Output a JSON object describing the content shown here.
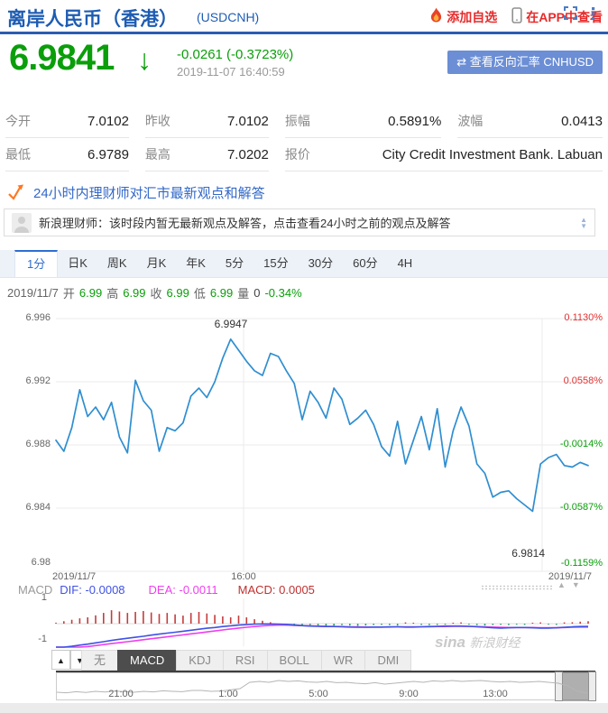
{
  "header": {
    "title": "离岸人民币（香港）",
    "symbol": "(USDCNH)",
    "add_watchlist": "添加自选",
    "view_in_app": "在APP中查看"
  },
  "quote": {
    "price": "6.9841",
    "arrow": "↓",
    "change": "-0.0261 (-0.3723%)",
    "timestamp": "2019-11-07 16:40:59",
    "reverse_button": "⇄ 查看反向汇率 CNHUSD"
  },
  "stats": {
    "rows": [
      [
        {
          "label": "今开",
          "value": "7.0102"
        },
        {
          "label": "昨收",
          "value": "7.0102"
        },
        {
          "label": "振幅",
          "value": "0.5891%"
        },
        {
          "label": "波幅",
          "value": "0.0413"
        }
      ],
      [
        {
          "label": "最低",
          "value": "6.9789"
        },
        {
          "label": "最高",
          "value": "7.0202"
        },
        {
          "label": "报价",
          "value": "City Credit Investment Bank. Labuan",
          "span": 2
        }
      ]
    ]
  },
  "advisory": {
    "headline": "24小时内理财师对汇市最新观点和解答",
    "message": "新浪理财师：该时段内暂无最新观点及解答，点击查看24小时之前的观点及解答"
  },
  "toolbar": {
    "periods": [
      "1分",
      "日K",
      "周K",
      "月K",
      "年K",
      "5分",
      "15分",
      "30分",
      "60分",
      "4H"
    ],
    "active": "1分"
  },
  "ohlc_line": {
    "date": "2019/11/7",
    "segments": [
      {
        "label": "开",
        "value": "6.99"
      },
      {
        "label": "高",
        "value": "6.99"
      },
      {
        "label": "收",
        "value": "6.99"
      },
      {
        "label": "低",
        "value": "6.99"
      },
      {
        "label": "量",
        "value": "0",
        "muted": true
      }
    ],
    "pct": "-0.34%"
  },
  "watermark": {
    "brand": "sina",
    "name": "新浪财经"
  },
  "chart_data": {
    "type": "line",
    "x_axis_labels": [
      "2019/11/7",
      "16:00",
      "2019/11/7"
    ],
    "y_ticks": [
      {
        "price": "6.996",
        "pct": "0.1130%"
      },
      {
        "price": "6.992",
        "pct": "0.0558%"
      },
      {
        "price": "6.988",
        "pct": "-0.0014%"
      },
      {
        "price": "6.984",
        "pct": "-0.0587%"
      },
      {
        "price": "6.98",
        "pct": "-0.1159%"
      }
    ],
    "max_label": "6.9947",
    "min_label": "6.9814",
    "ylim": [
      6.979,
      6.997
    ],
    "prices": [
      6.9883,
      6.9876,
      6.9891,
      6.9915,
      6.9898,
      6.9904,
      6.9896,
      6.9907,
      6.9885,
      6.9875,
      6.9921,
      6.9908,
      6.9902,
      6.9876,
      6.9891,
      6.9889,
      6.9894,
      6.9911,
      6.9916,
      6.991,
      6.992,
      6.9935,
      6.9947,
      6.994,
      6.9933,
      6.9927,
      6.9924,
      6.9938,
      6.9936,
      6.9927,
      6.9919,
      6.9896,
      6.9914,
      6.9907,
      6.9897,
      6.9916,
      6.9909,
      6.9893,
      6.9897,
      6.9902,
      6.9893,
      6.9879,
      6.9873,
      6.9895,
      6.9868,
      6.9883,
      6.9898,
      6.9877,
      6.9903,
      6.9866,
      6.9889,
      6.9904,
      6.9892,
      6.9868,
      6.9862,
      6.9847,
      6.985,
      6.9851,
      6.9846,
      6.9842,
      6.9838,
      6.9868,
      6.9872,
      6.9874,
      6.9867,
      6.9866,
      6.9869,
      6.9867
    ],
    "macd": {
      "yticks": [
        "1",
        "-1"
      ],
      "ylim": [
        -1,
        1
      ],
      "histogram": [
        0.04,
        0.1,
        0.16,
        0.22,
        0.26,
        0.34,
        0.44,
        0.55,
        0.5,
        0.44,
        0.48,
        0.52,
        0.46,
        0.4,
        0.44,
        0.38,
        0.33,
        0.44,
        0.48,
        0.42,
        0.36,
        0.3,
        0.26,
        0.33,
        0.26,
        0.18,
        0.12,
        0.06,
        -0.06,
        -0.08,
        -0.1,
        -0.08,
        -0.06,
        -0.08,
        -0.1,
        -0.08,
        -0.06,
        -0.08,
        -0.1,
        -0.08,
        -0.06,
        -0.05,
        -0.06,
        -0.08,
        0.05,
        0.04,
        -0.05,
        -0.06,
        -0.05,
        -0.04,
        0.04,
        0.05,
        -0.04,
        -0.06,
        -0.08,
        -0.06,
        -0.05,
        -0.06,
        -0.04,
        -0.05,
        0.04,
        0.05,
        -0.04,
        -0.05,
        0.05,
        0.06,
        0.08,
        0.1
      ],
      "dif": [
        -1.0,
        -0.97,
        -0.93,
        -0.88,
        -0.84,
        -0.79,
        -0.74,
        -0.69,
        -0.64,
        -0.6,
        -0.56,
        -0.52,
        -0.47,
        -0.43,
        -0.39,
        -0.35,
        -0.31,
        -0.27,
        -0.23,
        -0.19,
        -0.16,
        -0.12,
        -0.09,
        -0.06,
        -0.04,
        -0.02,
        -0.01,
        -0.01,
        -0.02,
        -0.03,
        -0.05,
        -0.08,
        -0.1,
        -0.11,
        -0.12,
        -0.12,
        -0.13,
        -0.14,
        -0.15,
        -0.15,
        -0.14,
        -0.14,
        -0.13,
        -0.13,
        -0.14,
        -0.14,
        -0.13,
        -0.12,
        -0.11,
        -0.1,
        -0.1,
        -0.1,
        -0.11,
        -0.13,
        -0.15,
        -0.17,
        -0.18,
        -0.17,
        -0.16,
        -0.16,
        -0.17,
        -0.18,
        -0.18,
        -0.17,
        -0.15,
        -0.13,
        -0.12,
        -0.11
      ],
      "dea": [
        -1.05,
        -1.03,
        -1.0,
        -0.97,
        -0.94,
        -0.9,
        -0.86,
        -0.82,
        -0.78,
        -0.74,
        -0.7,
        -0.66,
        -0.62,
        -0.58,
        -0.54,
        -0.5,
        -0.46,
        -0.42,
        -0.38,
        -0.34,
        -0.3,
        -0.26,
        -0.22,
        -0.18,
        -0.15,
        -0.12,
        -0.09,
        -0.07,
        -0.06,
        -0.06,
        -0.07,
        -0.08,
        -0.09,
        -0.1,
        -0.11,
        -0.12,
        -0.12,
        -0.13,
        -0.13,
        -0.14,
        -0.14,
        -0.14,
        -0.14,
        -0.13,
        -0.13,
        -0.13,
        -0.13,
        -0.13,
        -0.12,
        -0.12,
        -0.11,
        -0.11,
        -0.11,
        -0.12,
        -0.13,
        -0.14,
        -0.15,
        -0.16,
        -0.16,
        -0.16,
        -0.16,
        -0.17,
        -0.17,
        -0.17,
        -0.16,
        -0.15,
        -0.14,
        -0.14
      ]
    }
  },
  "macd_info": {
    "label": "MACD",
    "dif": "DIF: -0.0008",
    "dea": "DEA: -0.0011",
    "macd": "MACD: 0.0005"
  },
  "indicator_tabs": {
    "items": [
      "无",
      "MACD",
      "KDJ",
      "RSI",
      "BOLL",
      "WR",
      "DMI"
    ],
    "active": "MACD"
  },
  "navigator": {
    "times": [
      "21:00",
      "1:00",
      "5:00",
      "9:00",
      "13:00"
    ],
    "profile": [
      0.25,
      0.22,
      0.28,
      0.24,
      0.3,
      0.26,
      0.32,
      0.28,
      0.25,
      0.3,
      0.27,
      0.33,
      0.3,
      0.28,
      0.35,
      0.35,
      0.3,
      0.32,
      0.38,
      0.45,
      0.8,
      0.85,
      0.8,
      0.9,
      0.85,
      0.88,
      0.82,
      0.8,
      0.85,
      0.78,
      0.8,
      0.75,
      0.72,
      0.78,
      0.7,
      0.75,
      0.8,
      0.85,
      0.8,
      0.88,
      0.85,
      0.9,
      0.85,
      0.88,
      0.9,
      0.85,
      0.82,
      0.85,
      0.8,
      0.82,
      0.85,
      0.8,
      0.75,
      0.6,
      0.3,
      0.2
    ]
  },
  "colors": {
    "accent_blue": "#1e5cb3",
    "red": "#e62b2b",
    "green": "#0a9e0a",
    "link_blue": "#3268c8",
    "line_blue": "#2f8ed0",
    "dif_blue": "#3f51e5",
    "dea_magenta": "#ef3fef",
    "macd_red": "#c43c3c",
    "macd_green": "#35a06a",
    "button_blue": "#6b8ed5"
  }
}
